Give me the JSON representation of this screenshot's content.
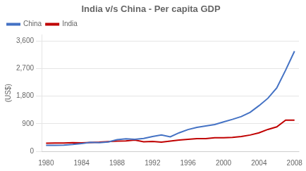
{
  "chart_data": {
    "type": "line",
    "title": "India v/s China - Per capita GDP",
    "ylabel": "(US$)",
    "x": [
      1980,
      1981,
      1982,
      1983,
      1984,
      1985,
      1986,
      1987,
      1988,
      1989,
      1990,
      1991,
      1992,
      1993,
      1994,
      1995,
      1996,
      1997,
      1998,
      1999,
      2000,
      2001,
      2002,
      2003,
      2004,
      2005,
      2006,
      2007,
      2008
    ],
    "series": [
      {
        "name": "China",
        "color": "#4472C4",
        "values": [
          195,
          198,
          203,
          222,
          250,
          293,
          281,
          303,
          377,
          405,
          390,
          418,
          483,
          533,
          473,
          604,
          709,
          781,
          829,
          873,
          959,
          1042,
          1135,
          1274,
          1490,
          1731,
          2069,
          2651,
          3267
        ]
      },
      {
        "name": "India",
        "color": "#C00000",
        "values": [
          267,
          272,
          270,
          280,
          277,
          290,
          300,
          318,
          334,
          338,
          368,
          310,
          319,
          296,
          332,
          367,
          390,
          415,
          413,
          443,
          443,
          456,
          481,
          531,
          603,
          714,
          797,
          1016,
          1017
        ]
      }
    ],
    "xlim": [
      1979.5,
      2008.5
    ],
    "xticks": [
      1980,
      1984,
      1988,
      1992,
      1996,
      2000,
      2004,
      2008
    ],
    "ylim": [
      0,
      3800
    ],
    "yticks": [
      0,
      900,
      {
        "value": 1800,
        "label": "1,800"
      },
      {
        "value": 2700,
        "label": "2,700"
      },
      {
        "value": 3600,
        "label": "3,600"
      }
    ],
    "grid": true,
    "legend": "upper left"
  }
}
